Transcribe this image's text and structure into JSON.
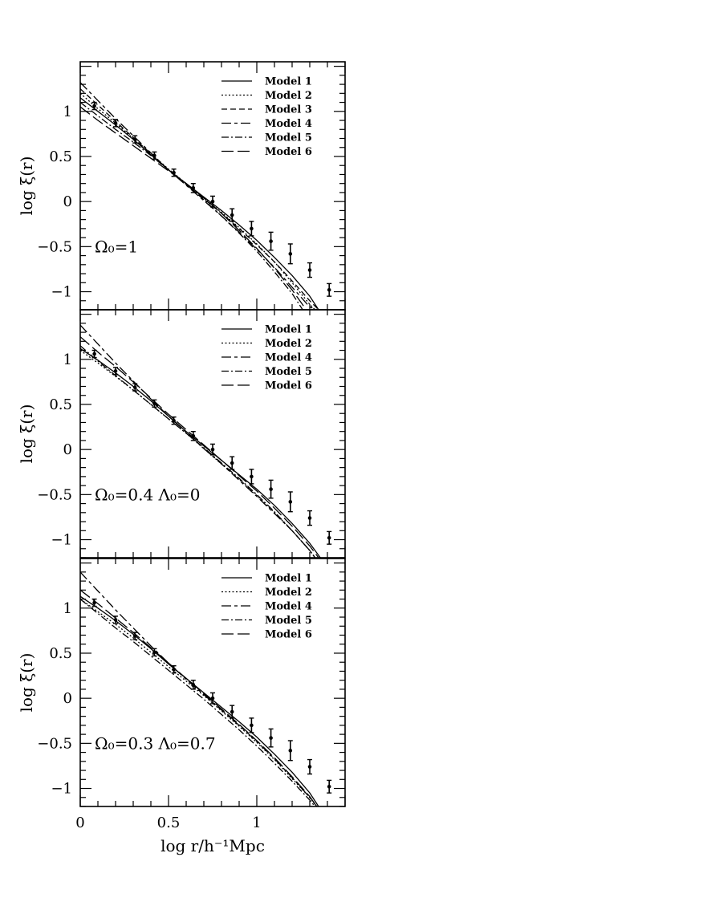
{
  "figure": {
    "xlabel": "log r/h⁻¹Mpc",
    "xticks": [
      {
        "value": 0,
        "label": "0"
      },
      {
        "value": 0.5,
        "label": "0.5"
      },
      {
        "value": 1,
        "label": "1"
      }
    ],
    "yticks": [
      {
        "value": 1,
        "label": "1"
      },
      {
        "value": 0.5,
        "label": "0.5"
      },
      {
        "value": 0,
        "label": "0"
      },
      {
        "value": -0.5,
        "label": "−0.5"
      },
      {
        "value": -1,
        "label": "−1"
      }
    ]
  },
  "chart_data": [
    {
      "type": "line",
      "panel_label": "Ω₀=1",
      "xlabel": "",
      "ylabel": "log ξ(r)",
      "xlim": [
        0,
        1.5
      ],
      "ylim": [
        -1.2,
        1.55
      ],
      "legend_position": "top-right",
      "observed": {
        "x": [
          0.08,
          0.2,
          0.31,
          0.42,
          0.53,
          0.64,
          0.75,
          0.86,
          0.97,
          1.08,
          1.19,
          1.3,
          1.41
        ],
        "y": [
          1.06,
          0.87,
          0.69,
          0.51,
          0.32,
          0.15,
          0.0,
          -0.15,
          -0.3,
          -0.44,
          -0.58,
          -0.76,
          -0.98
        ],
        "err": [
          0.04,
          0.04,
          0.04,
          0.04,
          0.04,
          0.05,
          0.06,
          0.07,
          0.08,
          0.1,
          0.11,
          0.08,
          0.07
        ]
      },
      "series": [
        {
          "name": "Model 1",
          "dash": "solid",
          "x": [
            0,
            0.1,
            0.2,
            0.3,
            0.4,
            0.5,
            0.6,
            0.7,
            0.8,
            0.9,
            1.0,
            1.1,
            1.2,
            1.3,
            1.35
          ],
          "y": [
            1.15,
            1.0,
            0.85,
            0.69,
            0.52,
            0.35,
            0.2,
            0.05,
            -0.1,
            -0.26,
            -0.43,
            -0.62,
            -0.82,
            -1.05,
            -1.2
          ]
        },
        {
          "name": "Model 2",
          "dash": "dotted",
          "x": [
            0,
            0.1,
            0.2,
            0.3,
            0.4,
            0.5,
            0.6,
            0.7,
            0.8,
            0.9,
            1.0,
            1.1,
            1.2,
            1.3,
            1.33
          ],
          "y": [
            1.2,
            1.03,
            0.87,
            0.7,
            0.53,
            0.36,
            0.2,
            0.04,
            -0.12,
            -0.29,
            -0.47,
            -0.67,
            -0.9,
            -1.14,
            -1.2
          ]
        },
        {
          "name": "Model 3",
          "dash": "short-dash",
          "x": [
            0,
            0.1,
            0.2,
            0.3,
            0.4,
            0.5,
            0.6,
            0.7,
            0.8,
            0.9,
            1.0,
            1.1,
            1.2,
            1.3,
            1.35
          ],
          "y": [
            1.25,
            1.07,
            0.89,
            0.71,
            0.53,
            0.35,
            0.19,
            0.03,
            -0.13,
            -0.3,
            -0.48,
            -0.67,
            -0.88,
            -1.1,
            -1.2
          ]
        },
        {
          "name": "Model 4",
          "dash": "long-short-dash",
          "x": [
            0,
            0.1,
            0.2,
            0.3,
            0.4,
            0.5,
            0.6,
            0.7,
            0.8,
            0.9,
            1.0,
            1.1,
            1.2,
            1.3,
            1.34
          ],
          "y": [
            1.32,
            1.12,
            0.92,
            0.73,
            0.54,
            0.35,
            0.18,
            0.01,
            -0.16,
            -0.34,
            -0.53,
            -0.73,
            -0.95,
            -1.17,
            -1.2
          ]
        },
        {
          "name": "Model 5",
          "dash": "dash-dot",
          "x": [
            0,
            0.1,
            0.2,
            0.3,
            0.4,
            0.5,
            0.6,
            0.7,
            0.8,
            0.9,
            1.0,
            1.1,
            1.2,
            1.26
          ],
          "y": [
            1.1,
            0.95,
            0.8,
            0.66,
            0.51,
            0.35,
            0.19,
            0.02,
            -0.16,
            -0.35,
            -0.55,
            -0.78,
            -1.02,
            -1.2
          ]
        },
        {
          "name": "Model 6",
          "dash": "long-dash",
          "x": [
            0,
            0.1,
            0.2,
            0.3,
            0.4,
            0.5,
            0.6,
            0.7,
            0.8,
            0.9,
            1.0,
            1.1,
            1.2,
            1.28
          ],
          "y": [
            1.05,
            0.9,
            0.76,
            0.62,
            0.48,
            0.34,
            0.2,
            0.04,
            -0.13,
            -0.32,
            -0.52,
            -0.74,
            -0.98,
            -1.2
          ]
        }
      ]
    },
    {
      "type": "line",
      "panel_label": "Ω₀=0.4  Λ₀=0",
      "xlabel": "",
      "ylabel": "log ξ(r)",
      "xlim": [
        0,
        1.5
      ],
      "ylim": [
        -1.2,
        1.55
      ],
      "legend_position": "top-right",
      "observed": {
        "x": [
          0.08,
          0.2,
          0.31,
          0.42,
          0.53,
          0.64,
          0.75,
          0.86,
          0.97,
          1.08,
          1.19,
          1.3,
          1.41
        ],
        "y": [
          1.06,
          0.87,
          0.69,
          0.51,
          0.32,
          0.15,
          0.0,
          -0.15,
          -0.3,
          -0.44,
          -0.58,
          -0.76,
          -0.98
        ],
        "err": [
          0.04,
          0.04,
          0.04,
          0.04,
          0.04,
          0.05,
          0.06,
          0.07,
          0.08,
          0.1,
          0.11,
          0.08,
          0.07
        ]
      },
      "series": [
        {
          "name": "Model 1",
          "dash": "solid",
          "x": [
            0,
            0.1,
            0.2,
            0.3,
            0.4,
            0.5,
            0.6,
            0.7,
            0.8,
            0.9,
            1.0,
            1.1,
            1.2,
            1.3,
            1.36
          ],
          "y": [
            1.12,
            0.99,
            0.85,
            0.7,
            0.54,
            0.37,
            0.2,
            0.04,
            -0.12,
            -0.28,
            -0.44,
            -0.62,
            -0.82,
            -1.04,
            -1.2
          ]
        },
        {
          "name": "Model 2",
          "dash": "dotted",
          "x": [
            0,
            0.1,
            0.2,
            0.3,
            0.4,
            0.5,
            0.6,
            0.7,
            0.8,
            0.9,
            1.0,
            1.1,
            1.2,
            1.3,
            1.33
          ],
          "y": [
            1.1,
            0.96,
            0.81,
            0.66,
            0.5,
            0.34,
            0.18,
            0.01,
            -0.16,
            -0.33,
            -0.51,
            -0.7,
            -0.9,
            -1.12,
            -1.2
          ]
        },
        {
          "name": "Model 4",
          "dash": "long-short-dash",
          "x": [
            0,
            0.1,
            0.2,
            0.3,
            0.4,
            0.5,
            0.6,
            0.7,
            0.8,
            0.9,
            1.0,
            1.1,
            1.2,
            1.3,
            1.33
          ],
          "y": [
            1.38,
            1.17,
            0.96,
            0.76,
            0.56,
            0.37,
            0.19,
            0.01,
            -0.16,
            -0.34,
            -0.52,
            -0.71,
            -0.9,
            -1.12,
            -1.2
          ]
        },
        {
          "name": "Model 5",
          "dash": "dash-dot",
          "x": [
            0,
            0.1,
            0.2,
            0.3,
            0.4,
            0.5,
            0.6,
            0.7,
            0.8,
            0.9,
            1.0,
            1.1,
            1.2,
            1.3,
            1.33
          ],
          "y": [
            1.15,
            0.98,
            0.82,
            0.66,
            0.5,
            0.34,
            0.18,
            0.02,
            -0.15,
            -0.32,
            -0.5,
            -0.69,
            -0.9,
            -1.12,
            -1.2
          ]
        },
        {
          "name": "Model 6",
          "dash": "long-dash",
          "x": [
            0,
            0.1,
            0.2,
            0.3,
            0.4,
            0.5,
            0.6,
            0.7,
            0.8,
            0.9,
            1.0,
            1.1,
            1.2,
            1.3,
            1.35
          ],
          "y": [
            1.25,
            1.08,
            0.92,
            0.75,
            0.57,
            0.39,
            0.22,
            0.05,
            -0.12,
            -0.29,
            -0.46,
            -0.65,
            -0.85,
            -1.07,
            -1.2
          ]
        }
      ]
    },
    {
      "type": "line",
      "panel_label": "Ω₀=0.3  Λ₀=0.7",
      "xlabel": "log r/h⁻¹Mpc",
      "ylabel": "log ξ(r)",
      "xlim": [
        0,
        1.5
      ],
      "ylim": [
        -1.2,
        1.55
      ],
      "legend_position": "top-right",
      "observed": {
        "x": [
          0.08,
          0.2,
          0.31,
          0.42,
          0.53,
          0.64,
          0.75,
          0.86,
          0.97,
          1.08,
          1.19,
          1.3,
          1.41
        ],
        "y": [
          1.06,
          0.87,
          0.69,
          0.51,
          0.32,
          0.15,
          0.0,
          -0.15,
          -0.3,
          -0.44,
          -0.58,
          -0.76,
          -0.98
        ],
        "err": [
          0.04,
          0.04,
          0.04,
          0.04,
          0.04,
          0.05,
          0.06,
          0.07,
          0.08,
          0.1,
          0.11,
          0.08,
          0.07
        ]
      },
      "series": [
        {
          "name": "Model 1",
          "dash": "solid",
          "x": [
            0,
            0.1,
            0.2,
            0.3,
            0.4,
            0.5,
            0.6,
            0.7,
            0.8,
            0.9,
            1.0,
            1.1,
            1.2,
            1.3,
            1.35
          ],
          "y": [
            1.13,
            1.0,
            0.86,
            0.71,
            0.55,
            0.38,
            0.22,
            0.06,
            -0.1,
            -0.26,
            -0.43,
            -0.62,
            -0.82,
            -1.05,
            -1.2
          ]
        },
        {
          "name": "Model 2",
          "dash": "dotted",
          "x": [
            0,
            0.1,
            0.2,
            0.3,
            0.4,
            0.5,
            0.6,
            0.7,
            0.8,
            0.9,
            1.0,
            1.1,
            1.2,
            1.3,
            1.34
          ],
          "y": [
            1.1,
            0.96,
            0.82,
            0.67,
            0.51,
            0.35,
            0.19,
            0.03,
            -0.14,
            -0.31,
            -0.49,
            -0.68,
            -0.89,
            -1.1,
            -1.2
          ]
        },
        {
          "name": "Model 4",
          "dash": "long-short-dash",
          "x": [
            0,
            0.1,
            0.2,
            0.3,
            0.4,
            0.5,
            0.6,
            0.7,
            0.8,
            0.9,
            1.0,
            1.1,
            1.2,
            1.3,
            1.34
          ],
          "y": [
            1.4,
            1.19,
            0.98,
            0.78,
            0.58,
            0.39,
            0.21,
            0.04,
            -0.13,
            -0.3,
            -0.48,
            -0.67,
            -0.88,
            -1.1,
            -1.2
          ]
        },
        {
          "name": "Model 5",
          "dash": "dash-dot",
          "x": [
            0,
            0.1,
            0.2,
            0.3,
            0.4,
            0.5,
            0.6,
            0.7,
            0.8,
            0.9,
            1.0,
            1.1,
            1.2,
            1.3,
            1.33
          ],
          "y": [
            1.1,
            0.94,
            0.78,
            0.63,
            0.47,
            0.31,
            0.15,
            -0.01,
            -0.18,
            -0.35,
            -0.53,
            -0.72,
            -0.92,
            -1.13,
            -1.2
          ]
        },
        {
          "name": "Model 6",
          "dash": "long-dash",
          "x": [
            0,
            0.1,
            0.2,
            0.3,
            0.4,
            0.5,
            0.6,
            0.7,
            0.8,
            0.9,
            1.0,
            1.1,
            1.2,
            1.3,
            1.34
          ],
          "y": [
            1.2,
            1.05,
            0.89,
            0.73,
            0.56,
            0.39,
            0.22,
            0.05,
            -0.12,
            -0.29,
            -0.47,
            -0.66,
            -0.87,
            -1.09,
            -1.2
          ]
        }
      ]
    }
  ]
}
